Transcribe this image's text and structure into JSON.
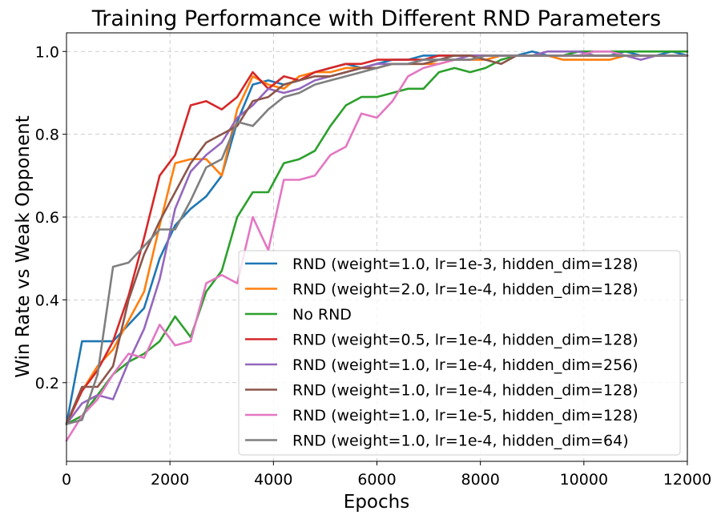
{
  "chart_data": {
    "type": "line",
    "title": "Training Performance with Different RND Parameters",
    "xlabel": "Epochs",
    "ylabel": "Win Rate vs Weak Opponent",
    "xlim": [
      0,
      12000
    ],
    "ylim": [
      0.01,
      1.045
    ],
    "xticks": [
      0,
      2000,
      4000,
      6000,
      8000,
      10000,
      12000
    ],
    "yticks": [
      0.2,
      0.4,
      0.6,
      0.8,
      1.0
    ],
    "xtick_labels": [
      "0",
      "2000",
      "4000",
      "6000",
      "8000",
      "10000",
      "12000"
    ],
    "ytick_labels": [
      "0.2",
      "0.4",
      "0.6",
      "0.8",
      "1.0"
    ],
    "grid": true,
    "legend_position": "lower-right",
    "x": [
      0,
      300,
      600,
      900,
      1200,
      1500,
      1800,
      2100,
      2400,
      2700,
      3000,
      3300,
      3600,
      3900,
      4200,
      4500,
      4800,
      5100,
      5400,
      5700,
      6000,
      6300,
      6600,
      6900,
      7200,
      7500,
      7800,
      8100,
      8400,
      8700,
      9000,
      9300,
      9600,
      9900,
      10200,
      10500,
      10800,
      11100,
      11400,
      11700,
      12000
    ],
    "series": [
      {
        "name": "RND (weight=1.0, lr=1e-3, hidden_dim=128)",
        "color": "#1f77b4",
        "values": [
          0.1,
          0.3,
          0.3,
          0.3,
          0.34,
          0.38,
          0.5,
          0.58,
          0.62,
          0.65,
          0.7,
          0.83,
          0.92,
          0.93,
          0.92,
          0.93,
          0.95,
          0.96,
          0.97,
          0.96,
          0.97,
          0.98,
          0.98,
          0.99,
          0.99,
          0.99,
          0.99,
          0.99,
          0.99,
          0.99,
          1.0,
          0.99,
          0.99,
          1.0,
          0.99,
          0.99,
          1.0,
          0.99,
          0.99,
          1.0,
          0.99
        ]
      },
      {
        "name": "RND (weight=2.0, lr=1e-4, hidden_dim=128)",
        "color": "#ff7f0e",
        "values": [
          0.1,
          0.18,
          0.24,
          0.28,
          0.35,
          0.42,
          0.58,
          0.73,
          0.74,
          0.74,
          0.7,
          0.86,
          0.94,
          0.92,
          0.91,
          0.94,
          0.95,
          0.95,
          0.96,
          0.96,
          0.96,
          0.97,
          0.97,
          0.97,
          0.97,
          0.98,
          0.98,
          0.98,
          0.99,
          0.99,
          0.99,
          0.99,
          0.98,
          0.98,
          0.98,
          0.98,
          0.99,
          0.99,
          0.99,
          0.99,
          0.99
        ]
      },
      {
        "name": "No RND",
        "color": "#2ca02c",
        "values": [
          0.1,
          0.12,
          0.17,
          0.22,
          0.25,
          0.27,
          0.3,
          0.36,
          0.31,
          0.42,
          0.47,
          0.6,
          0.66,
          0.66,
          0.73,
          0.74,
          0.76,
          0.82,
          0.87,
          0.89,
          0.89,
          0.9,
          0.91,
          0.91,
          0.95,
          0.96,
          0.95,
          0.96,
          0.98,
          0.99,
          0.99,
          0.99,
          0.99,
          1.0,
          1.0,
          1.0,
          1.0,
          1.0,
          1.0,
          1.0,
          1.0
        ]
      },
      {
        "name": "RND (weight=0.5, lr=1e-4, hidden_dim=128)",
        "color": "#d62728",
        "values": [
          0.1,
          0.18,
          0.23,
          0.3,
          0.41,
          0.55,
          0.7,
          0.75,
          0.87,
          0.88,
          0.86,
          0.89,
          0.95,
          0.91,
          0.94,
          0.93,
          0.95,
          0.96,
          0.97,
          0.97,
          0.98,
          0.98,
          0.98,
          0.98,
          0.99,
          0.99,
          0.99,
          0.99,
          0.99,
          0.99,
          0.99,
          0.99,
          0.99,
          0.99,
          0.99,
          0.99,
          0.99,
          0.99,
          0.99,
          0.99,
          0.99
        ]
      },
      {
        "name": "RND (weight=1.0, lr=1e-4, hidden_dim=256)",
        "color": "#9467bd",
        "values": [
          0.1,
          0.15,
          0.17,
          0.16,
          0.25,
          0.33,
          0.45,
          0.62,
          0.71,
          0.75,
          0.78,
          0.84,
          0.87,
          0.91,
          0.9,
          0.91,
          0.93,
          0.94,
          0.95,
          0.96,
          0.97,
          0.97,
          0.97,
          0.98,
          0.98,
          0.98,
          0.99,
          0.99,
          0.99,
          0.99,
          0.99,
          1.0,
          1.0,
          1.0,
          0.99,
          0.99,
          0.99,
          0.98,
          0.99,
          0.99,
          0.99
        ]
      },
      {
        "name": "RND (weight=1.0, lr=1e-4, hidden_dim=128)",
        "color": "#8c564b",
        "values": [
          0.1,
          0.19,
          0.19,
          0.24,
          0.4,
          0.51,
          0.59,
          0.66,
          0.73,
          0.78,
          0.8,
          0.82,
          0.88,
          0.89,
          0.92,
          0.93,
          0.94,
          0.94,
          0.95,
          0.96,
          0.96,
          0.97,
          0.97,
          0.97,
          0.98,
          0.99,
          0.99,
          0.98,
          0.97,
          0.99,
          0.99,
          0.99,
          0.99,
          0.99,
          0.99,
          0.99,
          0.99,
          0.99,
          0.99,
          0.99,
          0.99
        ]
      },
      {
        "name": "RND (weight=1.0, lr=1e-5, hidden_dim=128)",
        "color": "#e377c2",
        "values": [
          0.06,
          0.12,
          0.16,
          0.22,
          0.27,
          0.26,
          0.34,
          0.29,
          0.3,
          0.44,
          0.46,
          0.44,
          0.6,
          0.52,
          0.69,
          0.69,
          0.7,
          0.75,
          0.77,
          0.85,
          0.84,
          0.88,
          0.94,
          0.96,
          0.97,
          0.98,
          0.98,
          0.99,
          0.99,
          0.99,
          0.99,
          0.99,
          0.99,
          0.99,
          1.0,
          1.0,
          0.99,
          0.99,
          0.99,
          0.99,
          0.99
        ]
      },
      {
        "name": "RND (weight=1.0, lr=1e-4, hidden_dim=64)",
        "color": "#7f7f7f",
        "values": [
          0.1,
          0.11,
          0.22,
          0.48,
          0.49,
          0.53,
          0.57,
          0.57,
          0.64,
          0.72,
          0.74,
          0.83,
          0.82,
          0.86,
          0.89,
          0.9,
          0.92,
          0.93,
          0.94,
          0.95,
          0.96,
          0.97,
          0.97,
          0.98,
          0.98,
          0.98,
          0.98,
          0.99,
          0.99,
          0.99,
          0.99,
          0.99,
          0.99,
          0.99,
          0.99,
          0.99,
          0.99,
          0.99,
          0.99,
          0.99,
          0.99
        ]
      }
    ]
  }
}
